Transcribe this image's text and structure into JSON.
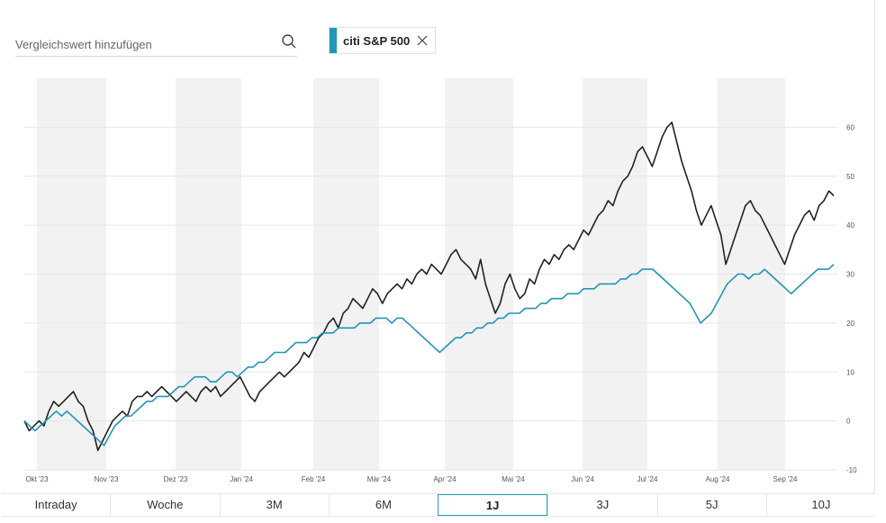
{
  "search": {
    "placeholder": "Vergleichswert hinzufügen",
    "value": "",
    "icon": "search-icon"
  },
  "compare_chip": {
    "label": "citi S&P 500",
    "color": "#2196b5",
    "close_icon": "close-icon"
  },
  "tabs": [
    {
      "label": "Intraday",
      "active": false
    },
    {
      "label": "Woche",
      "active": false
    },
    {
      "label": "3M",
      "active": false
    },
    {
      "label": "6M",
      "active": false
    },
    {
      "label": "1J",
      "active": true
    },
    {
      "label": "3J",
      "active": false
    },
    {
      "label": "5J",
      "active": false
    },
    {
      "label": "10J",
      "active": false
    }
  ],
  "chart_data": {
    "type": "line",
    "x_ticks": [
      "Okt '23",
      "Nov '23",
      "Dez '23",
      "Jan '24",
      "Feb '24",
      "Mär '24",
      "Apr '24",
      "Mai '24",
      "Jun '24",
      "Jul '24",
      "Aug '24",
      "Sep '24"
    ],
    "y_ticks": [
      -10,
      0,
      10,
      20,
      30,
      40,
      50,
      60
    ],
    "ylim": [
      -10,
      70
    ],
    "grid": true,
    "series": [
      {
        "color": "#222222",
        "values": [
          0,
          -2,
          -1,
          0,
          -1,
          2,
          4,
          3,
          4,
          5,
          6,
          4,
          3,
          0,
          -2,
          -6,
          -4,
          -2,
          0,
          1,
          2,
          1,
          4,
          5,
          5,
          6,
          5,
          6,
          7,
          6,
          5,
          4,
          5,
          6,
          5,
          4,
          6,
          7,
          6,
          7,
          5,
          6,
          7,
          8,
          9,
          7,
          5,
          4,
          6,
          7,
          8,
          9,
          10,
          9,
          10,
          11,
          12,
          14,
          13,
          15,
          17,
          18,
          20,
          21,
          19,
          22,
          23,
          25,
          24,
          23,
          25,
          27,
          26,
          24,
          26,
          27,
          28,
          27,
          29,
          28,
          30,
          31,
          30,
          32,
          31,
          30,
          32,
          34,
          35,
          33,
          32,
          31,
          29,
          33,
          28,
          25,
          22,
          24,
          28,
          30,
          27,
          25,
          26,
          29,
          28,
          31,
          33,
          32,
          34,
          33,
          35,
          36,
          35,
          37,
          39,
          38,
          40,
          42,
          43,
          45,
          44,
          47,
          49,
          50,
          52,
          55,
          56,
          54,
          52,
          55,
          58,
          60,
          61,
          57,
          53,
          50,
          47,
          43,
          40,
          42,
          44,
          41,
          38,
          32,
          35,
          38,
          41,
          44,
          45,
          43,
          42,
          40,
          38,
          36,
          34,
          32,
          35,
          38,
          40,
          42,
          43,
          41,
          44,
          45,
          47,
          46
        ]
      },
      {
        "color": "#2196b5",
        "values": [
          0,
          -1,
          -2,
          -1,
          0,
          1,
          2,
          1,
          2,
          1,
          0,
          -1,
          -2,
          -3,
          -4,
          -5,
          -3,
          -1,
          0,
          1,
          1,
          2,
          3,
          4,
          4,
          5,
          5,
          5,
          6,
          7,
          7,
          8,
          9,
          9,
          9,
          8,
          8,
          9,
          10,
          10,
          9,
          10,
          11,
          11,
          12,
          12,
          13,
          14,
          14,
          14,
          15,
          16,
          16,
          16,
          17,
          17,
          18,
          18,
          18,
          19,
          19,
          19,
          19,
          20,
          20,
          20,
          21,
          21,
          21,
          20,
          21,
          21,
          20,
          19,
          18,
          17,
          16,
          15,
          14,
          15,
          16,
          17,
          17,
          18,
          18,
          19,
          19,
          20,
          20,
          21,
          21,
          22,
          22,
          22,
          23,
          23,
          23,
          24,
          24,
          25,
          25,
          25,
          26,
          26,
          26,
          27,
          27,
          27,
          28,
          28,
          28,
          28,
          29,
          29,
          30,
          30,
          31,
          31,
          31,
          30,
          29,
          28,
          27,
          26,
          25,
          24,
          22,
          20,
          21,
          22,
          24,
          26,
          28,
          29,
          30,
          30,
          29,
          30,
          30,
          31,
          30,
          29,
          28,
          27,
          26,
          27,
          28,
          29,
          30,
          31,
          31,
          31,
          32
        ]
      }
    ]
  }
}
